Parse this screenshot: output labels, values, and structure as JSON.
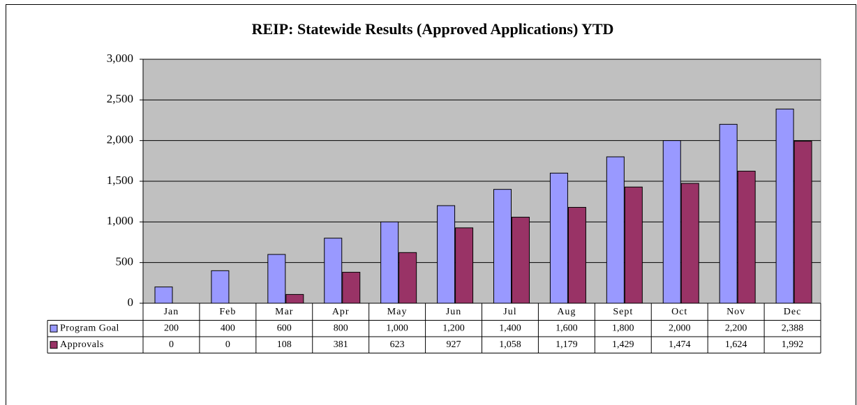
{
  "chart_data": {
    "type": "bar",
    "title": "REIP: Statewide Results (Approved Applications) YTD",
    "categories": [
      "Jan",
      "Feb",
      "Mar",
      "Apr",
      "May",
      "Jun",
      "Jul",
      "Aug",
      "Sept",
      "Oct",
      "Nov",
      "Dec"
    ],
    "series": [
      {
        "name": "Program Goal",
        "color": "#9999ff",
        "values": [
          200,
          400,
          600,
          800,
          1000,
          1200,
          1400,
          1600,
          1800,
          2000,
          2200,
          2388
        ],
        "value_labels": [
          "200",
          "400",
          "600",
          "800",
          "1,000",
          "1,200",
          "1,400",
          "1,600",
          "1,800",
          "2,000",
          "2,200",
          "2,388"
        ]
      },
      {
        "name": "Approvals",
        "color": "#993366",
        "values": [
          0,
          0,
          108,
          381,
          623,
          927,
          1058,
          1179,
          1429,
          1474,
          1624,
          1992
        ],
        "value_labels": [
          "0",
          "0",
          "108",
          "381",
          "623",
          "927",
          "1,058",
          "1,179",
          "1,429",
          "1,474",
          "1,624",
          "1,992"
        ]
      }
    ],
    "ylim": [
      0,
      3000
    ],
    "yticks": [
      0,
      500,
      {
        "value": 1000,
        "label": "1,000"
      },
      {
        "value": 1500,
        "label": "1,500"
      },
      {
        "value": 2000,
        "label": "2,000"
      },
      {
        "value": 2500,
        "label": "2,500"
      },
      {
        "value": 3000,
        "label": "3,000"
      }
    ],
    "grid": true,
    "plot_background": "#c0c0c0"
  }
}
